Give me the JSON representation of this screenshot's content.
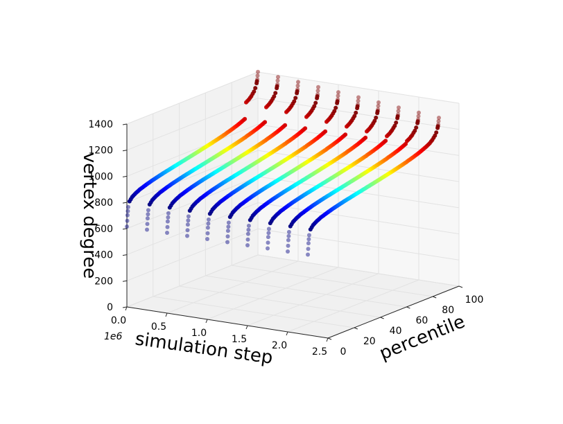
{
  "chart_data": {
    "type": "scatter",
    "projection": "3d",
    "x_axis": {
      "label": "simulation step",
      "ticks": [
        "0.0",
        "0.5",
        "1.0",
        "1.5",
        "2.0",
        "2.5"
      ],
      "tick_values": [
        0.0,
        0.5,
        1.0,
        1.5,
        2.0,
        2.5
      ],
      "offset_text": "1e6",
      "range": [
        0.0,
        2.5
      ]
    },
    "y_axis": {
      "label": "percentile",
      "ticks": [
        "0",
        "20",
        "40",
        "60",
        "80",
        "100"
      ],
      "tick_values": [
        0,
        20,
        40,
        60,
        80,
        100
      ],
      "range": [
        0,
        100
      ]
    },
    "z_axis": {
      "label": "vertex degree",
      "ticks": [
        "0",
        "200",
        "400",
        "600",
        "800",
        "1000",
        "1200",
        "1400"
      ],
      "tick_values": [
        0,
        200,
        400,
        600,
        800,
        1000,
        1200,
        1400
      ],
      "range": [
        0,
        1400
      ]
    },
    "colormap": "jet",
    "grid": true,
    "series_steps": [
      2.25,
      2.0,
      1.75,
      1.5,
      1.25,
      1.0,
      0.75,
      0.5,
      0.25,
      0.0
    ],
    "series_profile": {
      "percentile": [
        0,
        0.5,
        1,
        2,
        4,
        7,
        10,
        15,
        20,
        25,
        30,
        40,
        50,
        60,
        70,
        75,
        80,
        85,
        90,
        93,
        95,
        97,
        98,
        99,
        99.5,
        100
      ],
      "vertex_degree": [
        615,
        700,
        760,
        800,
        825,
        845,
        860,
        878,
        893,
        906,
        918,
        940,
        962,
        985,
        1010,
        1024,
        1040,
        1058,
        1080,
        1098,
        1115,
        1140,
        1160,
        1190,
        1215,
        1265
      ]
    }
  }
}
